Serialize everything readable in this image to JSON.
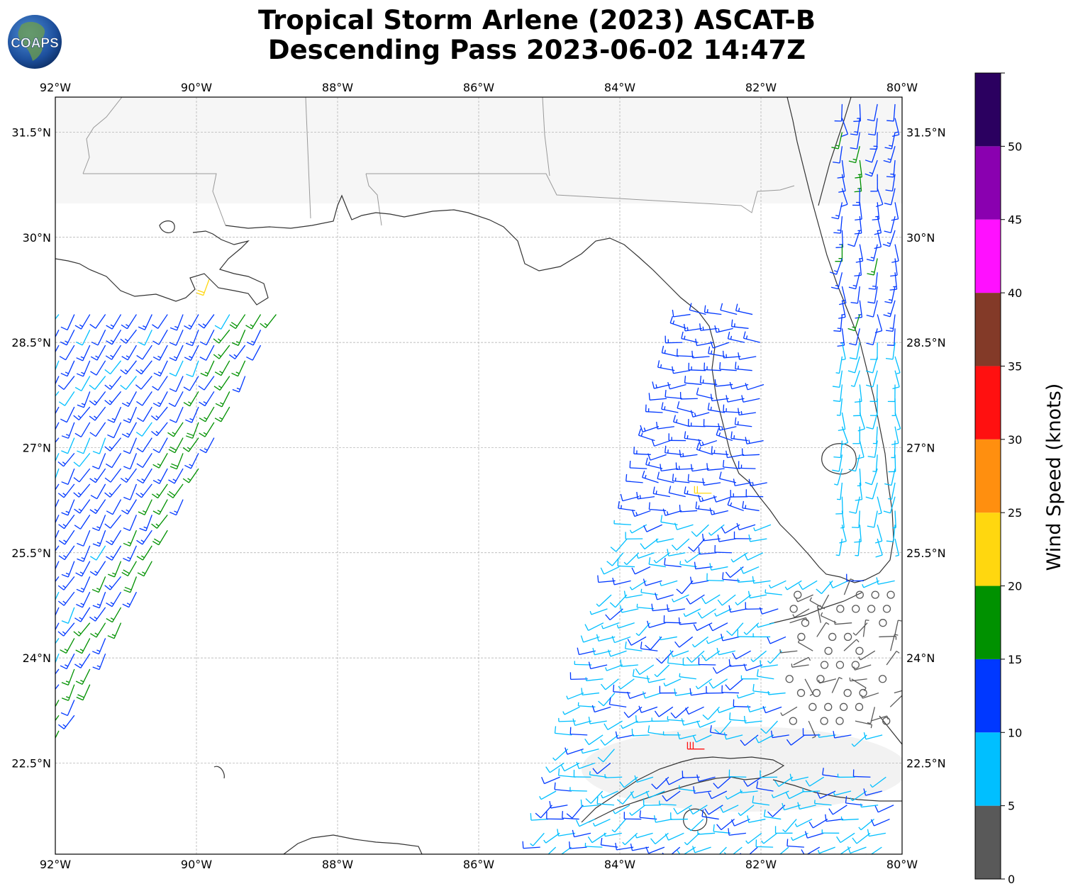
{
  "title": {
    "line1": "Tropical Storm Arlene (2023) ASCAT-B",
    "line2": "Descending Pass 2023-06-02 14:47Z"
  },
  "logo": {
    "text": "COAPS",
    "icon": "globe-logo-icon"
  },
  "map": {
    "lon_range": [
      -92.0,
      -80.0
    ],
    "lat_range": [
      21.2,
      32.0
    ],
    "x_ticks": [
      "92°W",
      "90°W",
      "88°W",
      "86°W",
      "84°W",
      "82°W",
      "80°W"
    ],
    "y_ticks": [
      "31.5°N",
      "30°N",
      "28.5°N",
      "27°N",
      "25.5°N",
      "24°N",
      "22.5°N"
    ],
    "grid": "dashed",
    "land_color": "#ffffff",
    "coast_color": "#333333"
  },
  "colorbar": {
    "label": "Wind Speed (knots)",
    "ticks": [
      "0",
      "5",
      "10",
      "15",
      "20",
      "25",
      "30",
      "35",
      "40",
      "45",
      "50"
    ],
    "bins": [
      {
        "from": 0,
        "to": 5,
        "color": "#595959"
      },
      {
        "from": 5,
        "to": 10,
        "color": "#00bfff"
      },
      {
        "from": 10,
        "to": 15,
        "color": "#0038ff"
      },
      {
        "from": 15,
        "to": 20,
        "color": "#009100"
      },
      {
        "from": 20,
        "to": 25,
        "color": "#ffd70f"
      },
      {
        "from": 25,
        "to": 30,
        "color": "#ff8f0f"
      },
      {
        "from": 30,
        "to": 35,
        "color": "#ff1010"
      },
      {
        "from": 35,
        "to": 40,
        "color": "#833a28"
      },
      {
        "from": 40,
        "to": 45,
        "color": "#ff10ff"
      },
      {
        "from": 45,
        "to": 50,
        "color": "#8a00b0"
      },
      {
        "from": 50,
        "to": 55,
        "color": "#2b0060"
      }
    ]
  }
}
